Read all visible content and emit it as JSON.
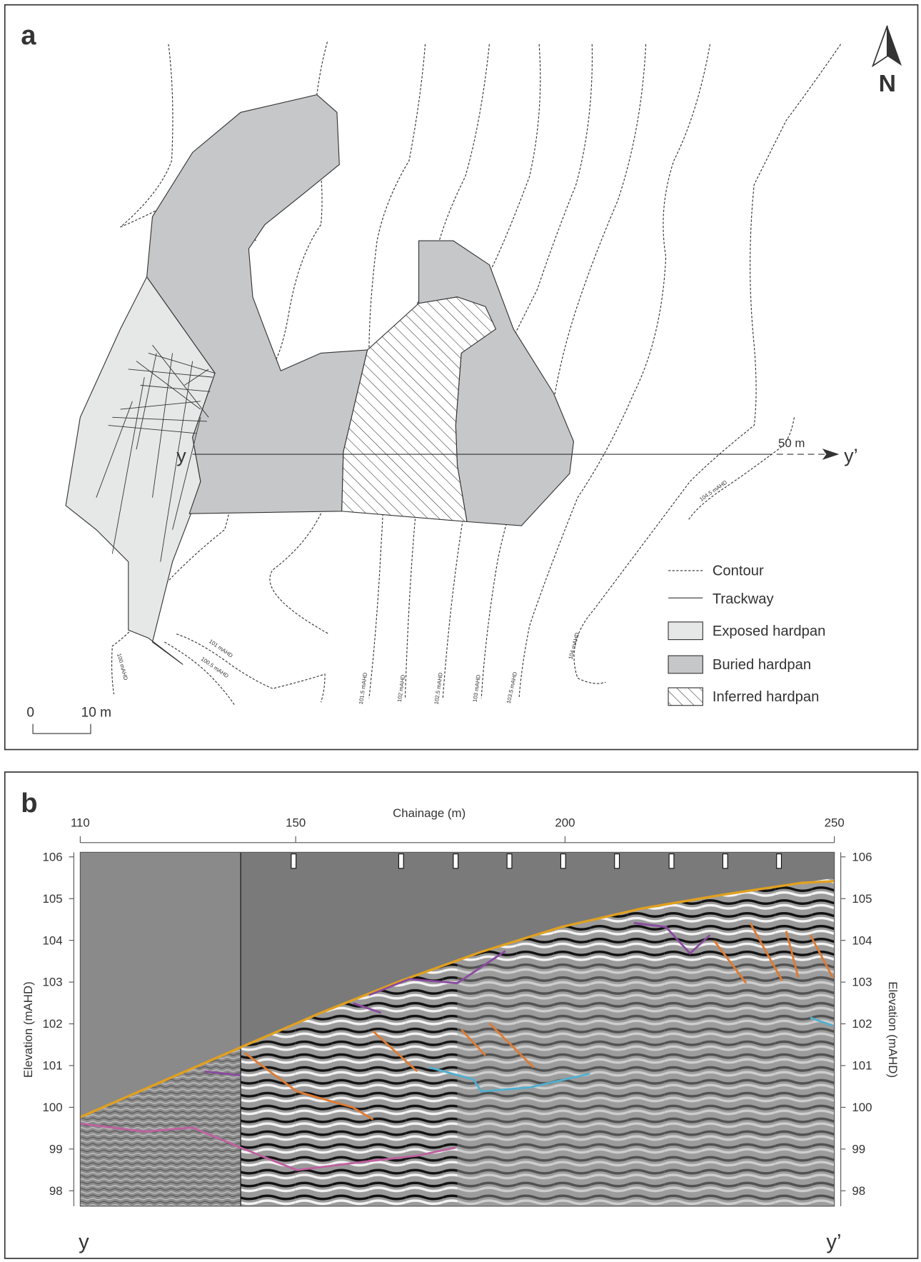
{
  "panel_a": {
    "label": "a",
    "north": "N",
    "contours": [
      "100 mAHD",
      "100.5 mAHD",
      "101 mAHD",
      "101.5 mAHD",
      "102 mAHD",
      "102.5 mAHD",
      "103 mAHD",
      "103.5 mAHD",
      "104 mAHD",
      "104.5 mAHD"
    ],
    "profile_start": "y",
    "profile_end": "y’",
    "profile_length": "50 m",
    "legend": [
      "Contour",
      "Trackway",
      "Exposed hardpan",
      "Buried hardpan",
      "Inferred hardpan"
    ],
    "scale_bar": [
      "0",
      "10 m"
    ]
  },
  "panel_b": {
    "label": "b",
    "x_label": "Chainage (m)",
    "xlim": [
      110,
      250
    ],
    "xticks": [
      110,
      150,
      200,
      250
    ],
    "y_label": "Elevation (mAHD)",
    "ylim": [
      97.63,
      106.11
    ],
    "yticks": [
      98,
      99,
      100,
      101,
      102,
      103,
      104,
      105,
      106
    ],
    "profile_start": "y",
    "profile_end": "y’"
  }
}
